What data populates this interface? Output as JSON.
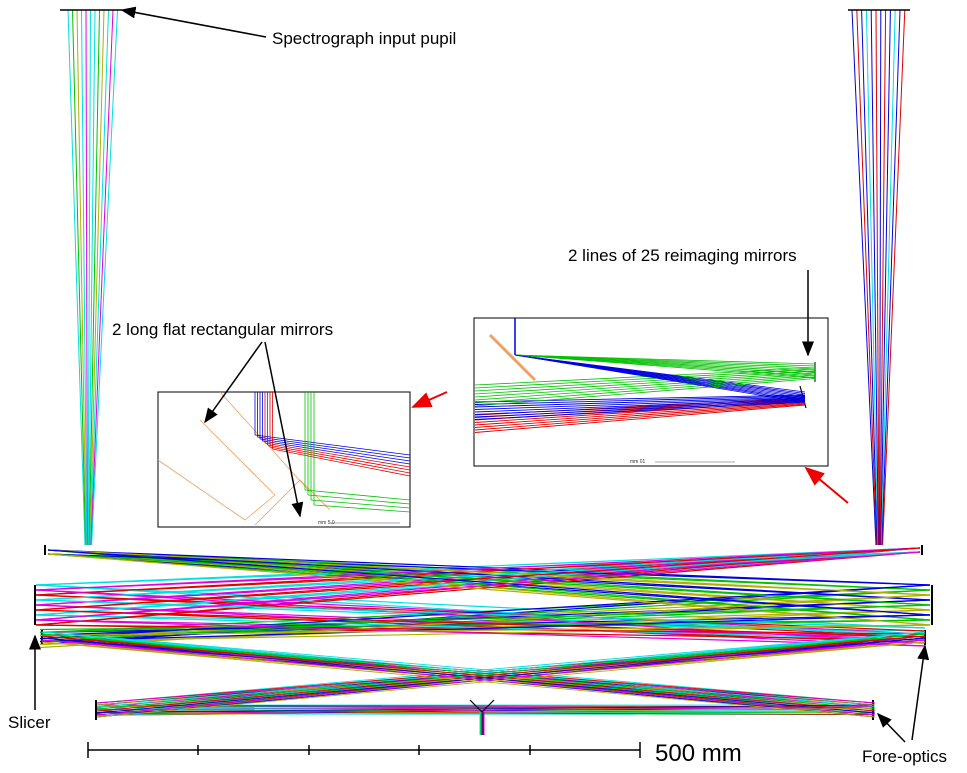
{
  "labels": {
    "pupil": "Spectrograph input pupil",
    "reimaging": "2 lines of 25 reimaging mirrors",
    "flat_mirrors": "2 long flat rectangular mirrors",
    "slicer": "Slicer",
    "fore_optics": "Fore-optics",
    "scale": "500 mm"
  },
  "insets": {
    "left_scale": "mm 5.0",
    "right_scale": "mm 01"
  }
}
